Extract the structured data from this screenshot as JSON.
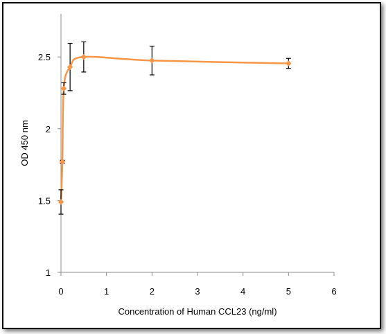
{
  "chart_data": {
    "type": "scatter",
    "title": "",
    "xlabel": "Concentration of Human CCL23 (ng/ml)",
    "ylabel": "OD 450 nm",
    "xlim": [
      0,
      6
    ],
    "ylim": [
      1,
      2.8
    ],
    "x_ticks": [
      "0",
      "1",
      "2",
      "3",
      "4",
      "5",
      "6"
    ],
    "y_ticks": [
      "1",
      "1.5",
      "2",
      "2.5"
    ],
    "grid": false,
    "legend": "none",
    "series": [
      {
        "color": "#F79646",
        "line": "smooth",
        "marker": "diamond",
        "points": [
          {
            "x": 0,
            "y": 1.49,
            "err": 0.085
          },
          {
            "x": 0.031,
            "y": 1.77,
            "err": 0.01
          },
          {
            "x": 0.062,
            "y": 2.28,
            "err": 0.04
          },
          {
            "x": 0.2,
            "y": 2.43,
            "err": 0.165
          },
          {
            "x": 0.5,
            "y": 2.5,
            "err": 0.105
          },
          {
            "x": 2,
            "y": 2.475,
            "err": 0.1
          },
          {
            "x": 5,
            "y": 2.455,
            "err": 0.035
          }
        ]
      }
    ]
  }
}
